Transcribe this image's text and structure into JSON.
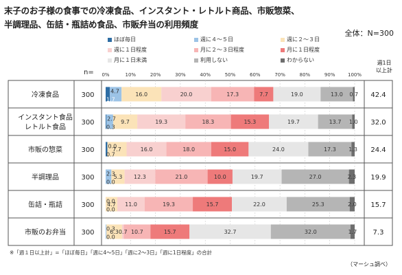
{
  "title_line1": "末子のお子様の食事での冷凍食品、インスタント・レトルト商品、市販惣菜、",
  "title_line2": "半調理品、缶詰・瓶詰め食品、市販弁当の利用頻度",
  "total_label": "全体：N=300",
  "n_header": "n=",
  "top_header": "週1日\n以上計",
  "footnote": "※「週１日以上計」=「ほぼ毎日」「週に4～5日」「週に2～3日」「週に1日程度」の合計",
  "source": "（マーシュ調べ）",
  "chart_data": {
    "type": "bar",
    "orientation": "horizontal",
    "stacked": "100%",
    "x_ticks": [
      "0%",
      "10%",
      "20%",
      "30%",
      "40%",
      "50%",
      "60%",
      "70%",
      "80%",
      "90%",
      "100%"
    ],
    "legend": [
      {
        "name": "ほぼ毎日",
        "color": "#2e6da4"
      },
      {
        "name": "週に４～５日",
        "color": "#9cc3e6"
      },
      {
        "name": "週に２～３日",
        "color": "#fbe3b8"
      },
      {
        "name": "週に１日程度",
        "color": "#f8d0cf"
      },
      {
        "name": "月に２～３日程度",
        "color": "#f7b5b5"
      },
      {
        "name": "月に１日程度",
        "color": "#ee7a7a"
      },
      {
        "name": "月に１日未満",
        "color": "#e6e6e6"
      },
      {
        "name": "利用しない",
        "color": "#b5b5b5"
      },
      {
        "name": "わからない",
        "color": "#6e6e6e"
      }
    ],
    "rows": [
      {
        "label": "冷凍食品",
        "n": "300",
        "values": [
          1.7,
          4.7,
          16.0,
          20.0,
          17.3,
          7.7,
          19.0,
          13.0,
          0.7
        ],
        "total": "42.4"
      },
      {
        "label": "インスタント食品\nレトルト食品",
        "n": "300",
        "values": [
          0.3,
          2.7,
          9.7,
          19.3,
          18.3,
          15.3,
          19.7,
          13.7,
          1.0
        ],
        "total": "32.0"
      },
      {
        "label": "市販の惣菜",
        "n": "300",
        "values": [
          0.7,
          0.0,
          7.7,
          16.0,
          18.0,
          15.0,
          24.0,
          17.3,
          1.3
        ],
        "total": "24.4"
      },
      {
        "label": "半調理品",
        "n": "300",
        "values": [
          0.0,
          2.3,
          5.3,
          12.3,
          21.0,
          10.0,
          19.7,
          27.0,
          2.3
        ],
        "total": "19.9"
      },
      {
        "label": "缶詰・瓶詰",
        "n": "300",
        "values": [
          0.0,
          0.0,
          4.7,
          11.0,
          19.3,
          15.7,
          22.0,
          25.3,
          2.0
        ],
        "total": "15.7"
      },
      {
        "label": "市販のお弁当",
        "n": "300",
        "values": [
          0.0,
          0.3,
          6.3,
          0.7,
          10.7,
          15.7,
          32.7,
          32.0,
          1.7
        ],
        "total": "7.3"
      }
    ]
  }
}
